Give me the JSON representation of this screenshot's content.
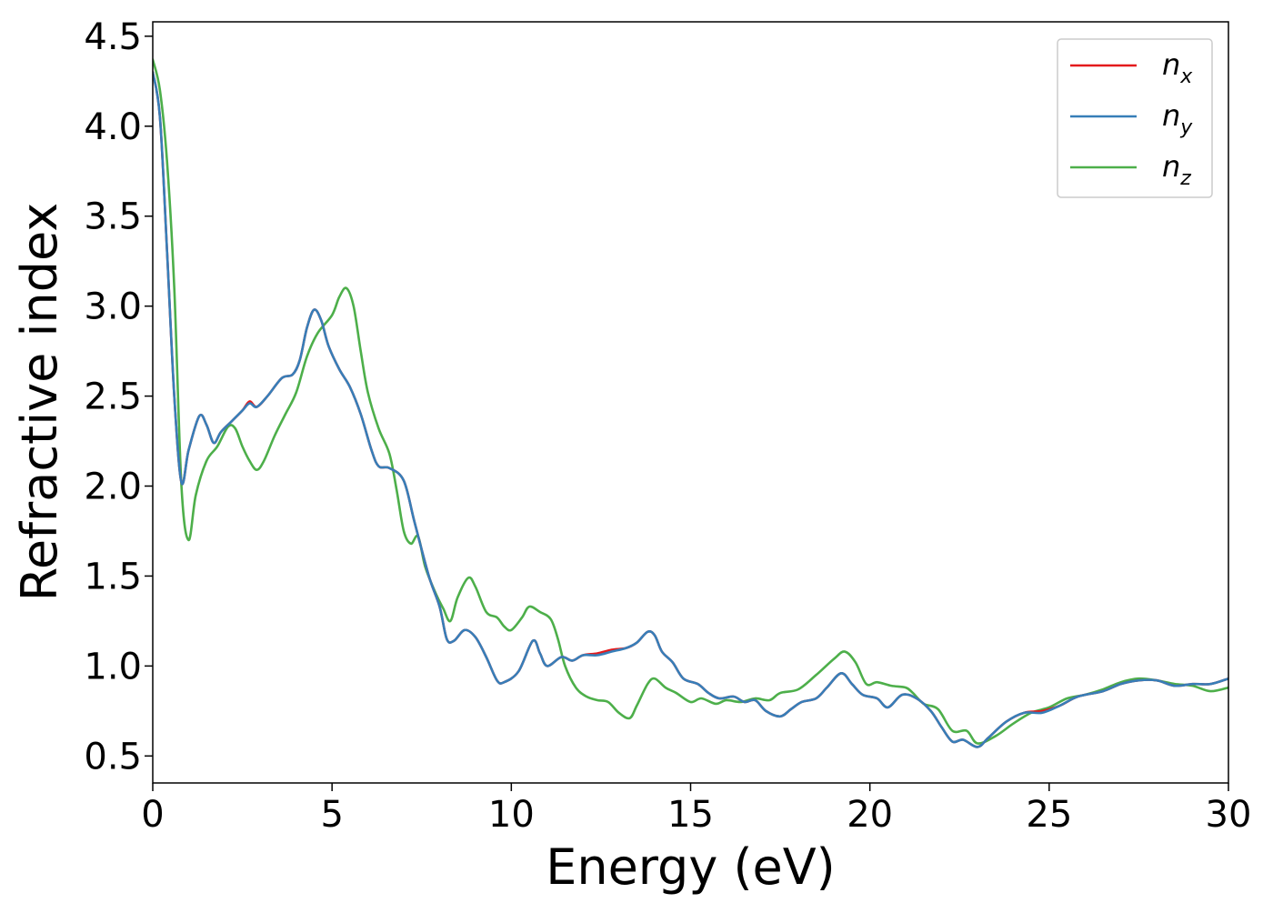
{
  "chart_data": {
    "type": "line",
    "title": "",
    "xlabel": "Energy (eV)",
    "ylabel": "Refractive index",
    "xlim": [
      0,
      30
    ],
    "ylim": [
      0.35,
      4.58
    ],
    "xticks": [
      0,
      5,
      10,
      15,
      20,
      25,
      30
    ],
    "xtick_labels": [
      "0",
      "5",
      "10",
      "15",
      "20",
      "25",
      "30"
    ],
    "yticks": [
      0.5,
      1.0,
      1.5,
      2.0,
      2.5,
      3.0,
      3.5,
      4.0,
      4.5
    ],
    "ytick_labels": [
      "0.5",
      "1.0",
      "1.5",
      "2.0",
      "2.5",
      "3.0",
      "3.5",
      "4.0",
      "4.5"
    ],
    "grid": false,
    "legend_position": "top-right",
    "series": [
      {
        "name": "n_x",
        "label_base": "n",
        "label_sub": "x",
        "color": "#e41a1c",
        "points": [
          [
            0,
            4.3
          ],
          [
            0.2,
            4.05
          ],
          [
            0.4,
            3.3
          ],
          [
            0.6,
            2.5
          ],
          [
            0.8,
            2.02
          ],
          [
            1.0,
            2.2
          ],
          [
            1.3,
            2.39
          ],
          [
            1.5,
            2.34
          ],
          [
            1.7,
            2.24
          ],
          [
            1.9,
            2.3
          ],
          [
            2.2,
            2.36
          ],
          [
            2.5,
            2.42
          ],
          [
            2.7,
            2.47
          ],
          [
            2.9,
            2.44
          ],
          [
            3.2,
            2.5
          ],
          [
            3.6,
            2.6
          ],
          [
            3.9,
            2.62
          ],
          [
            4.1,
            2.7
          ],
          [
            4.3,
            2.88
          ],
          [
            4.5,
            2.98
          ],
          [
            4.7,
            2.92
          ],
          [
            4.9,
            2.78
          ],
          [
            5.2,
            2.65
          ],
          [
            5.5,
            2.55
          ],
          [
            5.8,
            2.4
          ],
          [
            6.1,
            2.2
          ],
          [
            6.3,
            2.11
          ],
          [
            6.6,
            2.1
          ],
          [
            7.0,
            2.03
          ],
          [
            7.3,
            1.8
          ],
          [
            7.7,
            1.5
          ],
          [
            8.0,
            1.33
          ],
          [
            8.2,
            1.15
          ],
          [
            8.4,
            1.14
          ],
          [
            8.7,
            1.2
          ],
          [
            9.0,
            1.16
          ],
          [
            9.3,
            1.05
          ],
          [
            9.6,
            0.92
          ],
          [
            9.8,
            0.91
          ],
          [
            10.2,
            0.97
          ],
          [
            10.6,
            1.14
          ],
          [
            10.8,
            1.07
          ],
          [
            11.0,
            1.0
          ],
          [
            11.4,
            1.05
          ],
          [
            11.7,
            1.03
          ],
          [
            12.0,
            1.06
          ],
          [
            12.4,
            1.07
          ],
          [
            12.8,
            1.09
          ],
          [
            13.2,
            1.1
          ],
          [
            13.5,
            1.13
          ],
          [
            13.8,
            1.19
          ],
          [
            14.0,
            1.17
          ],
          [
            14.2,
            1.08
          ],
          [
            14.5,
            1.02
          ],
          [
            14.8,
            0.93
          ],
          [
            15.2,
            0.9
          ],
          [
            15.5,
            0.85
          ],
          [
            15.8,
            0.82
          ],
          [
            16.2,
            0.83
          ],
          [
            16.5,
            0.8
          ],
          [
            16.8,
            0.81
          ],
          [
            17.1,
            0.75
          ],
          [
            17.5,
            0.72
          ],
          [
            17.8,
            0.76
          ],
          [
            18.1,
            0.8
          ],
          [
            18.5,
            0.82
          ],
          [
            18.8,
            0.88
          ],
          [
            19.2,
            0.96
          ],
          [
            19.5,
            0.9
          ],
          [
            19.8,
            0.84
          ],
          [
            20.2,
            0.82
          ],
          [
            20.5,
            0.77
          ],
          [
            20.9,
            0.84
          ],
          [
            21.3,
            0.82
          ],
          [
            21.7,
            0.75
          ],
          [
            22.0,
            0.66
          ],
          [
            22.3,
            0.58
          ],
          [
            22.6,
            0.59
          ],
          [
            23.0,
            0.55
          ],
          [
            23.3,
            0.6
          ],
          [
            23.8,
            0.69
          ],
          [
            24.3,
            0.74
          ],
          [
            24.8,
            0.75
          ],
          [
            25.3,
            0.78
          ],
          [
            25.8,
            0.83
          ],
          [
            26.5,
            0.86
          ],
          [
            27.0,
            0.9
          ],
          [
            27.5,
            0.92
          ],
          [
            28.0,
            0.92
          ],
          [
            28.5,
            0.89
          ],
          [
            29.0,
            0.9
          ],
          [
            29.5,
            0.9
          ],
          [
            30.0,
            0.93
          ]
        ]
      },
      {
        "name": "n_y",
        "label_base": "n",
        "label_sub": "y",
        "color": "#377eb8",
        "points": [
          [
            0,
            4.3
          ],
          [
            0.2,
            4.05
          ],
          [
            0.4,
            3.3
          ],
          [
            0.6,
            2.5
          ],
          [
            0.8,
            2.02
          ],
          [
            1.0,
            2.2
          ],
          [
            1.3,
            2.39
          ],
          [
            1.5,
            2.34
          ],
          [
            1.7,
            2.24
          ],
          [
            1.9,
            2.3
          ],
          [
            2.2,
            2.36
          ],
          [
            2.5,
            2.42
          ],
          [
            2.7,
            2.46
          ],
          [
            2.9,
            2.44
          ],
          [
            3.2,
            2.5
          ],
          [
            3.6,
            2.6
          ],
          [
            3.9,
            2.62
          ],
          [
            4.1,
            2.7
          ],
          [
            4.3,
            2.88
          ],
          [
            4.5,
            2.98
          ],
          [
            4.7,
            2.92
          ],
          [
            4.9,
            2.78
          ],
          [
            5.2,
            2.65
          ],
          [
            5.5,
            2.55
          ],
          [
            5.8,
            2.4
          ],
          [
            6.1,
            2.2
          ],
          [
            6.3,
            2.11
          ],
          [
            6.6,
            2.1
          ],
          [
            7.0,
            2.03
          ],
          [
            7.3,
            1.8
          ],
          [
            7.7,
            1.5
          ],
          [
            8.0,
            1.33
          ],
          [
            8.2,
            1.15
          ],
          [
            8.4,
            1.14
          ],
          [
            8.7,
            1.2
          ],
          [
            9.0,
            1.16
          ],
          [
            9.3,
            1.05
          ],
          [
            9.6,
            0.92
          ],
          [
            9.8,
            0.91
          ],
          [
            10.2,
            0.97
          ],
          [
            10.6,
            1.14
          ],
          [
            10.8,
            1.07
          ],
          [
            11.0,
            1.0
          ],
          [
            11.4,
            1.05
          ],
          [
            11.7,
            1.03
          ],
          [
            12.0,
            1.06
          ],
          [
            12.4,
            1.06
          ],
          [
            12.8,
            1.08
          ],
          [
            13.2,
            1.1
          ],
          [
            13.5,
            1.13
          ],
          [
            13.8,
            1.19
          ],
          [
            14.0,
            1.17
          ],
          [
            14.2,
            1.08
          ],
          [
            14.5,
            1.02
          ],
          [
            14.8,
            0.93
          ],
          [
            15.2,
            0.9
          ],
          [
            15.5,
            0.85
          ],
          [
            15.8,
            0.82
          ],
          [
            16.2,
            0.83
          ],
          [
            16.5,
            0.8
          ],
          [
            16.8,
            0.81
          ],
          [
            17.1,
            0.75
          ],
          [
            17.5,
            0.72
          ],
          [
            17.8,
            0.76
          ],
          [
            18.1,
            0.8
          ],
          [
            18.5,
            0.82
          ],
          [
            18.8,
            0.88
          ],
          [
            19.2,
            0.96
          ],
          [
            19.5,
            0.9
          ],
          [
            19.8,
            0.84
          ],
          [
            20.2,
            0.82
          ],
          [
            20.5,
            0.77
          ],
          [
            20.9,
            0.84
          ],
          [
            21.3,
            0.82
          ],
          [
            21.7,
            0.75
          ],
          [
            22.0,
            0.66
          ],
          [
            22.3,
            0.58
          ],
          [
            22.6,
            0.59
          ],
          [
            23.0,
            0.55
          ],
          [
            23.3,
            0.6
          ],
          [
            23.8,
            0.69
          ],
          [
            24.3,
            0.74
          ],
          [
            24.8,
            0.74
          ],
          [
            25.3,
            0.78
          ],
          [
            25.8,
            0.83
          ],
          [
            26.5,
            0.86
          ],
          [
            27.0,
            0.9
          ],
          [
            27.5,
            0.92
          ],
          [
            28.0,
            0.92
          ],
          [
            28.5,
            0.89
          ],
          [
            29.0,
            0.9
          ],
          [
            29.5,
            0.9
          ],
          [
            30.0,
            0.93
          ]
        ]
      },
      {
        "name": "n_z",
        "label_base": "n",
        "label_sub": "z",
        "color": "#4daf4a",
        "points": [
          [
            0,
            4.37
          ],
          [
            0.2,
            4.2
          ],
          [
            0.4,
            3.8
          ],
          [
            0.6,
            3.1
          ],
          [
            0.8,
            2.0
          ],
          [
            1.0,
            1.7
          ],
          [
            1.2,
            1.95
          ],
          [
            1.5,
            2.14
          ],
          [
            1.8,
            2.22
          ],
          [
            2.1,
            2.33
          ],
          [
            2.3,
            2.32
          ],
          [
            2.5,
            2.22
          ],
          [
            2.7,
            2.14
          ],
          [
            2.9,
            2.09
          ],
          [
            3.1,
            2.14
          ],
          [
            3.4,
            2.28
          ],
          [
            3.7,
            2.4
          ],
          [
            4.0,
            2.52
          ],
          [
            4.3,
            2.72
          ],
          [
            4.6,
            2.85
          ],
          [
            5.0,
            2.95
          ],
          [
            5.2,
            3.05
          ],
          [
            5.4,
            3.1
          ],
          [
            5.6,
            3.0
          ],
          [
            5.8,
            2.75
          ],
          [
            6.0,
            2.52
          ],
          [
            6.3,
            2.32
          ],
          [
            6.6,
            2.18
          ],
          [
            6.8,
            1.98
          ],
          [
            7.0,
            1.75
          ],
          [
            7.2,
            1.68
          ],
          [
            7.4,
            1.72
          ],
          [
            7.6,
            1.55
          ],
          [
            7.9,
            1.4
          ],
          [
            8.1,
            1.32
          ],
          [
            8.3,
            1.25
          ],
          [
            8.5,
            1.38
          ],
          [
            8.8,
            1.49
          ],
          [
            9.0,
            1.44
          ],
          [
            9.3,
            1.3
          ],
          [
            9.6,
            1.27
          ],
          [
            9.8,
            1.22
          ],
          [
            10.0,
            1.2
          ],
          [
            10.3,
            1.27
          ],
          [
            10.5,
            1.33
          ],
          [
            10.8,
            1.3
          ],
          [
            11.1,
            1.26
          ],
          [
            11.3,
            1.15
          ],
          [
            11.5,
            1.0
          ],
          [
            11.8,
            0.88
          ],
          [
            12.1,
            0.83
          ],
          [
            12.4,
            0.81
          ],
          [
            12.7,
            0.8
          ],
          [
            13.0,
            0.74
          ],
          [
            13.3,
            0.71
          ],
          [
            13.5,
            0.78
          ],
          [
            13.8,
            0.9
          ],
          [
            14.0,
            0.93
          ],
          [
            14.3,
            0.88
          ],
          [
            14.6,
            0.85
          ],
          [
            15.0,
            0.8
          ],
          [
            15.3,
            0.82
          ],
          [
            15.7,
            0.79
          ],
          [
            16.0,
            0.81
          ],
          [
            16.4,
            0.8
          ],
          [
            16.8,
            0.82
          ],
          [
            17.2,
            0.81
          ],
          [
            17.5,
            0.85
          ],
          [
            18.0,
            0.87
          ],
          [
            18.5,
            0.95
          ],
          [
            19.0,
            1.04
          ],
          [
            19.3,
            1.08
          ],
          [
            19.6,
            1.02
          ],
          [
            19.9,
            0.9
          ],
          [
            20.2,
            0.91
          ],
          [
            20.6,
            0.89
          ],
          [
            21.0,
            0.88
          ],
          [
            21.2,
            0.85
          ],
          [
            21.5,
            0.79
          ],
          [
            21.9,
            0.76
          ],
          [
            22.3,
            0.64
          ],
          [
            22.7,
            0.64
          ],
          [
            23.0,
            0.57
          ],
          [
            23.5,
            0.61
          ],
          [
            24.0,
            0.68
          ],
          [
            24.5,
            0.74
          ],
          [
            25.0,
            0.77
          ],
          [
            25.5,
            0.82
          ],
          [
            26.0,
            0.84
          ],
          [
            26.5,
            0.87
          ],
          [
            27.0,
            0.91
          ],
          [
            27.5,
            0.93
          ],
          [
            28.0,
            0.92
          ],
          [
            28.5,
            0.9
          ],
          [
            29.0,
            0.89
          ],
          [
            29.5,
            0.86
          ],
          [
            30.0,
            0.88
          ]
        ]
      }
    ]
  }
}
